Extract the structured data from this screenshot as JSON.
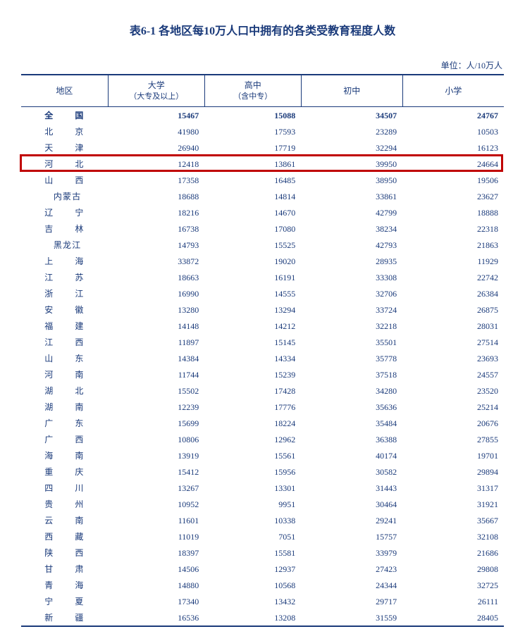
{
  "title": "表6-1 各地区每10万人口中拥有的各类受教育程度人数",
  "unit_label": "单位：人/10万人",
  "columns": {
    "region": "地区",
    "col1_main": "大学",
    "col1_sub": "（大专及以上）",
    "col2_main": "高中",
    "col2_sub": "（含中专）",
    "col3": "初中",
    "col4": "小学"
  },
  "highlight_row_index": 3,
  "highlight_color": "#c00000",
  "rows": [
    {
      "region": "全　国",
      "ls": "ls1",
      "bold": true,
      "v": [
        15467,
        15088,
        34507,
        24767
      ]
    },
    {
      "region": "北　京",
      "ls": "ls1",
      "v": [
        41980,
        17593,
        23289,
        10503
      ]
    },
    {
      "region": "天　津",
      "ls": "ls1",
      "v": [
        26940,
        17719,
        32294,
        16123
      ]
    },
    {
      "region": "河　北",
      "ls": "ls1",
      "v": [
        12418,
        13861,
        39950,
        24664
      ]
    },
    {
      "region": "山　西",
      "ls": "ls1",
      "v": [
        17358,
        16485,
        38950,
        19506
      ]
    },
    {
      "region": "内蒙古",
      "ls": "ls0",
      "v": [
        18688,
        14814,
        33861,
        23627
      ]
    },
    {
      "region": "辽　宁",
      "ls": "ls1",
      "v": [
        18216,
        14670,
        42799,
        18888
      ]
    },
    {
      "region": "吉　林",
      "ls": "ls1",
      "v": [
        16738,
        17080,
        38234,
        22318
      ]
    },
    {
      "region": "黑龙江",
      "ls": "ls0",
      "v": [
        14793,
        15525,
        42793,
        21863
      ]
    },
    {
      "region": "上　海",
      "ls": "ls1",
      "v": [
        33872,
        19020,
        28935,
        11929
      ]
    },
    {
      "region": "江　苏",
      "ls": "ls1",
      "v": [
        18663,
        16191,
        33308,
        22742
      ]
    },
    {
      "region": "浙　江",
      "ls": "ls1",
      "v": [
        16990,
        14555,
        32706,
        26384
      ]
    },
    {
      "region": "安　徽",
      "ls": "ls1",
      "v": [
        13280,
        13294,
        33724,
        26875
      ]
    },
    {
      "region": "福　建",
      "ls": "ls1",
      "v": [
        14148,
        14212,
        32218,
        28031
      ]
    },
    {
      "region": "江　西",
      "ls": "ls1",
      "v": [
        11897,
        15145,
        35501,
        27514
      ]
    },
    {
      "region": "山　东",
      "ls": "ls1",
      "v": [
        14384,
        14334,
        35778,
        23693
      ]
    },
    {
      "region": "河　南",
      "ls": "ls1",
      "v": [
        11744,
        15239,
        37518,
        24557
      ]
    },
    {
      "region": "湖　北",
      "ls": "ls1",
      "v": [
        15502,
        17428,
        34280,
        23520
      ]
    },
    {
      "region": "湖　南",
      "ls": "ls1",
      "v": [
        12239,
        17776,
        35636,
        25214
      ]
    },
    {
      "region": "广　东",
      "ls": "ls1",
      "v": [
        15699,
        18224,
        35484,
        20676
      ]
    },
    {
      "region": "广　西",
      "ls": "ls1",
      "v": [
        10806,
        12962,
        36388,
        27855
      ]
    },
    {
      "region": "海　南",
      "ls": "ls1",
      "v": [
        13919,
        15561,
        40174,
        19701
      ]
    },
    {
      "region": "重　庆",
      "ls": "ls1",
      "v": [
        15412,
        15956,
        30582,
        29894
      ]
    },
    {
      "region": "四　川",
      "ls": "ls1",
      "v": [
        13267,
        13301,
        31443,
        31317
      ]
    },
    {
      "region": "贵　州",
      "ls": "ls1",
      "v": [
        10952,
        9951,
        30464,
        31921
      ]
    },
    {
      "region": "云　南",
      "ls": "ls1",
      "v": [
        11601,
        10338,
        29241,
        35667
      ]
    },
    {
      "region": "西　藏",
      "ls": "ls1",
      "v": [
        11019,
        7051,
        15757,
        32108
      ]
    },
    {
      "region": "陕　西",
      "ls": "ls1",
      "v": [
        18397,
        15581,
        33979,
        21686
      ]
    },
    {
      "region": "甘　肃",
      "ls": "ls1",
      "v": [
        14506,
        12937,
        27423,
        29808
      ]
    },
    {
      "region": "青　海",
      "ls": "ls1",
      "v": [
        14880,
        10568,
        24344,
        32725
      ]
    },
    {
      "region": "宁　夏",
      "ls": "ls1",
      "v": [
        17340,
        13432,
        29717,
        26111
      ]
    },
    {
      "region": "新　疆",
      "ls": "ls1",
      "v": [
        16536,
        13208,
        31559,
        28405
      ]
    }
  ],
  "colors": {
    "text": "#1a3a7a",
    "border": "#1a3a7a",
    "background": "#ffffff"
  },
  "col_widths_pct": [
    18,
    20,
    20,
    21,
    21
  ]
}
